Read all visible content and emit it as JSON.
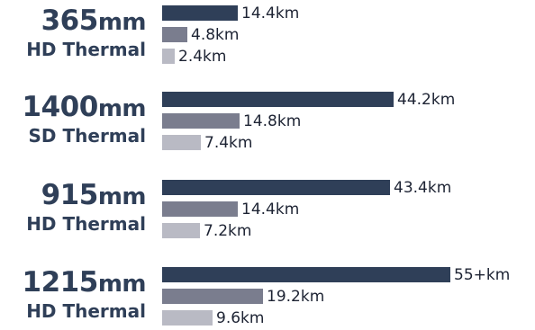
{
  "chart_data": {
    "type": "bar",
    "orientation": "horizontal",
    "groups": [
      {
        "num": "365",
        "unit": "mm",
        "sub": "HD Thermal",
        "values": [
          14.4,
          4.8,
          2.4
        ],
        "labels": [
          "14.4km",
          "4.8km",
          "2.4km"
        ]
      },
      {
        "num": "1400",
        "unit": "mm",
        "sub": "SD Thermal",
        "values": [
          44.2,
          14.8,
          7.4
        ],
        "labels": [
          "44.2km",
          "14.8km",
          "7.4km"
        ]
      },
      {
        "num": "915",
        "unit": "mm",
        "sub": "HD Thermal",
        "values": [
          43.4,
          14.4,
          7.2
        ],
        "labels": [
          "43.4km",
          "14.4km",
          "7.2km"
        ]
      },
      {
        "num": "1215",
        "unit": "mm",
        "sub": "HD Thermal",
        "values": [
          55,
          19.2,
          9.6
        ],
        "labels": [
          "55+km",
          "19.2km",
          "9.6km"
        ]
      }
    ],
    "series_colors": [
      "#2f3f58",
      "#7a7d8e",
      "#b9bac4"
    ],
    "xlim": [
      0,
      55
    ]
  }
}
